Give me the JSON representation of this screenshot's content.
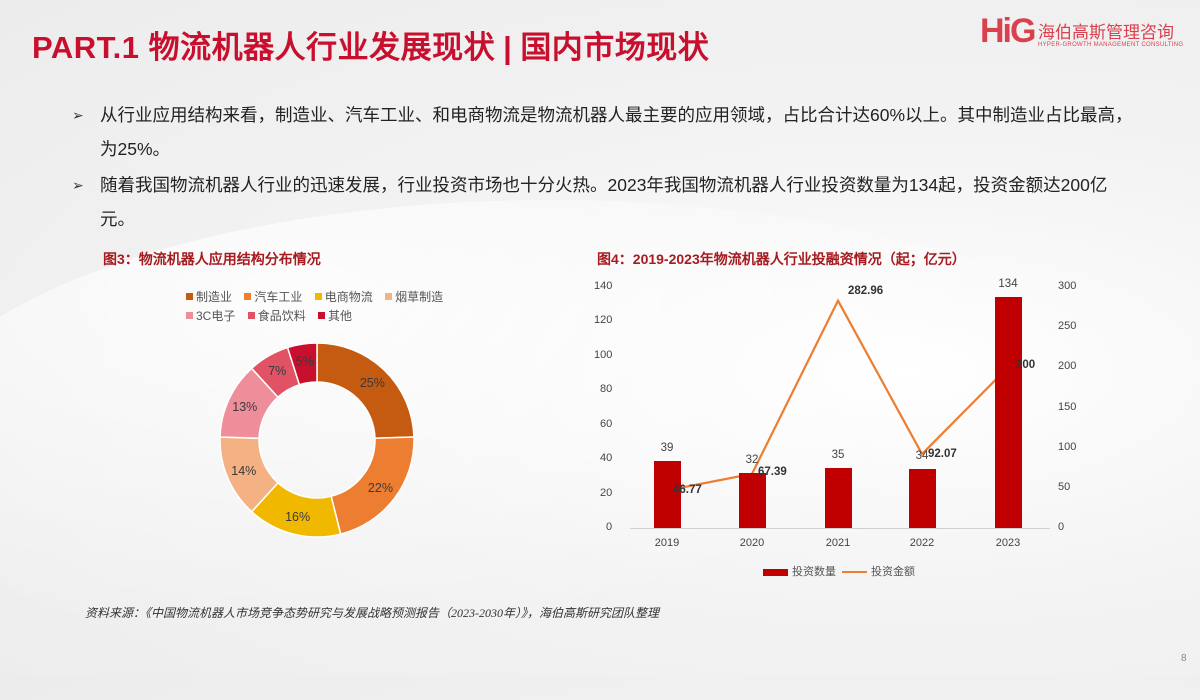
{
  "header": {
    "title_part": "PART.1 物流机器人行业发展现状",
    "title_sep": "|",
    "title_sub": "国内市场现状",
    "logo": {
      "mark": "HiG",
      "name_cn": "海伯高斯管理咨询",
      "name_en": "HYPER-GROWTH MANAGEMENT CONSULTING"
    }
  },
  "bullets": [
    {
      "icon": "arrow-bullet-icon",
      "text": "从行业应用结构来看，制造业、汽车工业、和电商物流是物流机器人最主要的应用领域，占比合计达60%以上。其中制造业占比最高，为25%。"
    },
    {
      "icon": "arrow-bullet-icon",
      "text": "随着我国物流机器人行业的迅速发展，行业投资市场也十分火热。2023年我国物流机器人行业投资数量为134起，投资金额达200亿元。"
    }
  ],
  "figure3": {
    "title": "图3：物流机器人应用结构分布情况"
  },
  "figure4": {
    "title": "图4：2019-2023年物流机器人行业投融资情况（起；亿元）"
  },
  "colors": {
    "title_red": "#c8102e",
    "bar_red": "#c00000",
    "line_orange": "#ed7d31",
    "slice_colors": [
      "#c55a11",
      "#ed7d31",
      "#f1b800",
      "#f4b183",
      "#ee8e9a",
      "#e05264",
      "#c8102e"
    ]
  },
  "chart_data": [
    {
      "type": "pie",
      "variant": "donut",
      "title": "图3：物流机器人应用结构分布情况",
      "categories": [
        "制造业",
        "汽车工业",
        "电商物流",
        "烟草制造",
        "3C电子",
        "食品饮料",
        "其他"
      ],
      "values": [
        25,
        22,
        16,
        14,
        13,
        7,
        5
      ],
      "labels": [
        "25%",
        "22%",
        "16%",
        "14%",
        "13%",
        "7%",
        "5%"
      ],
      "unit": "%",
      "legend_position": "top"
    },
    {
      "type": "bar",
      "combo": "bar+line",
      "title": "图4：2019-2023年物流机器人行业投融资情况（起；亿元）",
      "categories": [
        "2019",
        "2020",
        "2021",
        "2022",
        "2023"
      ],
      "series": [
        {
          "name": "投资数量",
          "type": "bar",
          "axis": "left",
          "values": [
            39,
            32,
            35,
            34,
            134
          ],
          "labels": [
            "39",
            "32",
            "35",
            "34",
            "134"
          ]
        },
        {
          "name": "投资金额",
          "type": "line",
          "axis": "right",
          "values": [
            46.77,
            67.39,
            282.96,
            92.07,
            200
          ],
          "labels": [
            "46.77",
            "67.39",
            "282.96",
            "92.07",
            "200"
          ]
        }
      ],
      "y_left": {
        "ticks": [
          "0",
          "20",
          "40",
          "60",
          "80",
          "100",
          "120",
          "140"
        ],
        "ylim": [
          0,
          140
        ]
      },
      "y_right": {
        "ticks": [
          "0",
          "50",
          "100",
          "150",
          "200",
          "250",
          "300"
        ],
        "ylim": [
          0,
          300
        ]
      },
      "grid": false,
      "legend_position": "bottom"
    }
  ],
  "source": "资料来源：《中国物流机器人市场竞争态势研究与发展战略预测报告（2023-2030年）》，海伯高斯研究团队整理",
  "page_number": "8"
}
